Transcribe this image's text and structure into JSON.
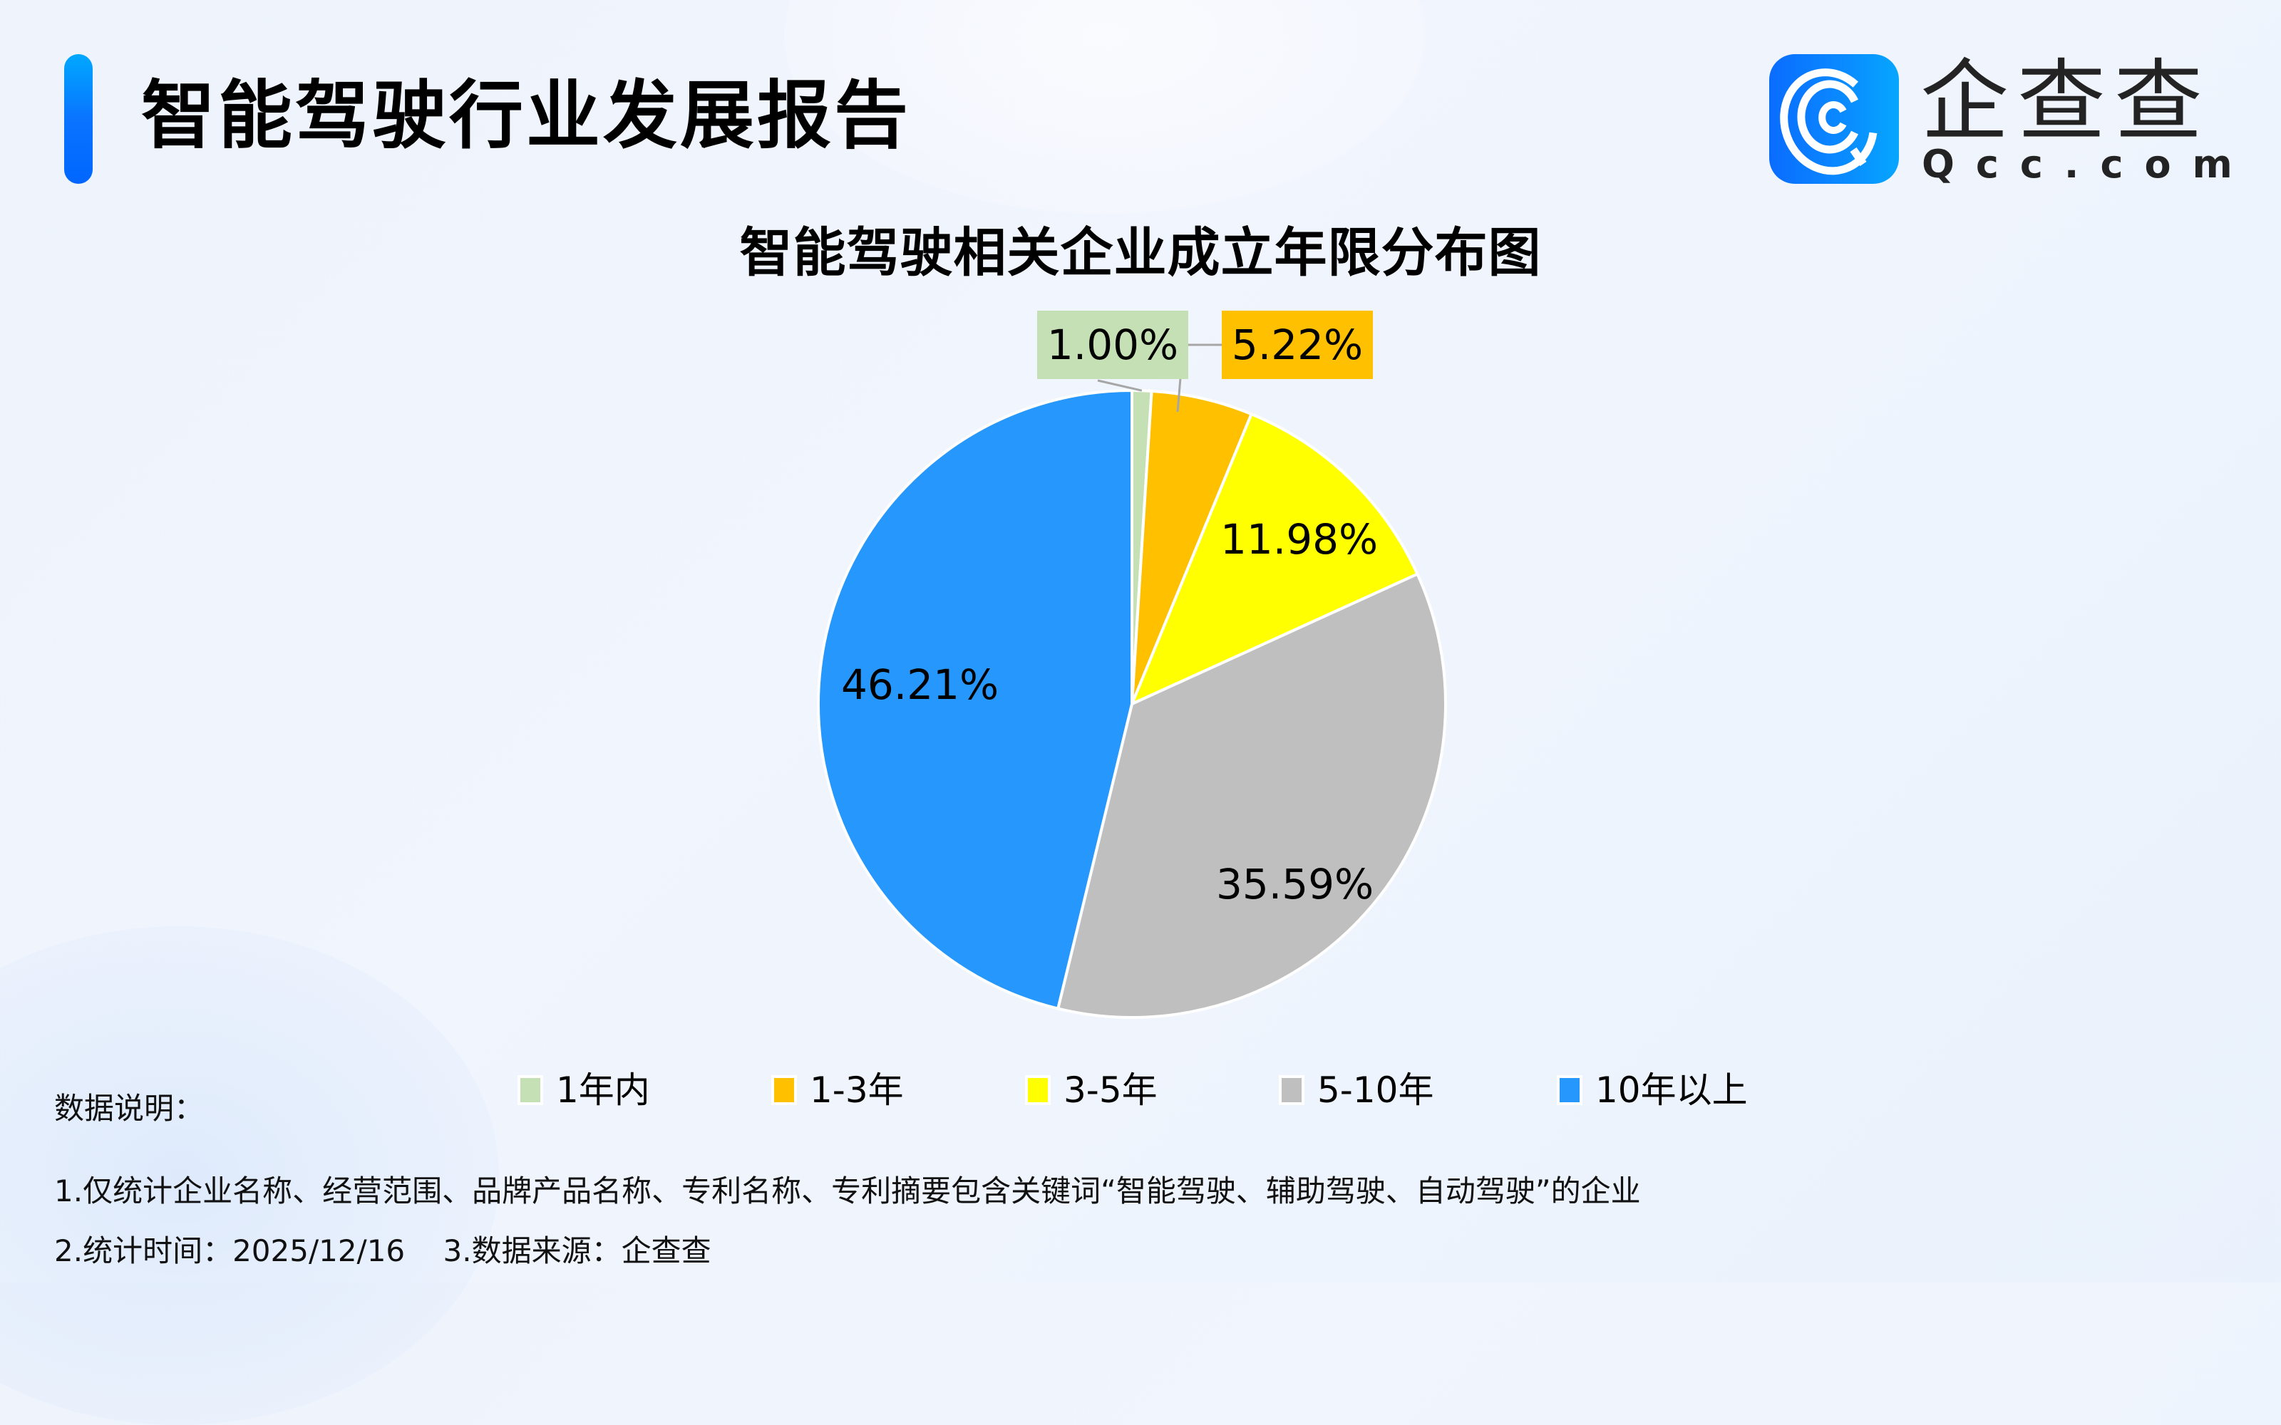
{
  "header": {
    "report_title": "智能驾驶行业发展报告",
    "logo": {
      "icon": "qcc-logo-icon",
      "name_cn": "企查查",
      "name_en": "Qcc.com"
    }
  },
  "chart": {
    "title": "智能驾驶相关企业成立年限分布图",
    "slices": [
      {
        "label": "1年内",
        "value_label": "1.00%",
        "color": "#c5e0b4"
      },
      {
        "label": "1-3年",
        "value_label": "5.22%",
        "color": "#ffc000"
      },
      {
        "label": "3-5年",
        "value_label": "11.98%",
        "color": "#ffff00"
      },
      {
        "label": "5-10年",
        "value_label": "35.59%",
        "color": "#bfbfbf"
      },
      {
        "label": "10年以上",
        "value_label": "46.21%",
        "color": "#2697fc"
      }
    ]
  },
  "notes": {
    "heading": "数据说明：",
    "line1": "1.仅统计企业名称、经营范围、品牌产品名称、专利名称、专利摘要包含关键词“智能驾驶、辅助驾驶、自动驾驶”的企业",
    "line2": "2.统计时间：2025/12/16    3.数据来源：企查查"
  },
  "chart_data": {
    "type": "pie",
    "title": "智能驾驶相关企业成立年限分布图",
    "categories": [
      "1年内",
      "1-3年",
      "3-5年",
      "5-10年",
      "10年以上"
    ],
    "values": [
      1.0,
      5.22,
      11.98,
      35.59,
      46.21
    ],
    "unit": "%",
    "colors": [
      "#c5e0b4",
      "#ffc000",
      "#ffff00",
      "#bfbfbf",
      "#2697fc"
    ],
    "legend_position": "bottom",
    "start_angle": "12 o'clock, clockwise",
    "data_labels": [
      "1.00%",
      "5.22%",
      "11.98%",
      "35.59%",
      "46.21%"
    ]
  }
}
